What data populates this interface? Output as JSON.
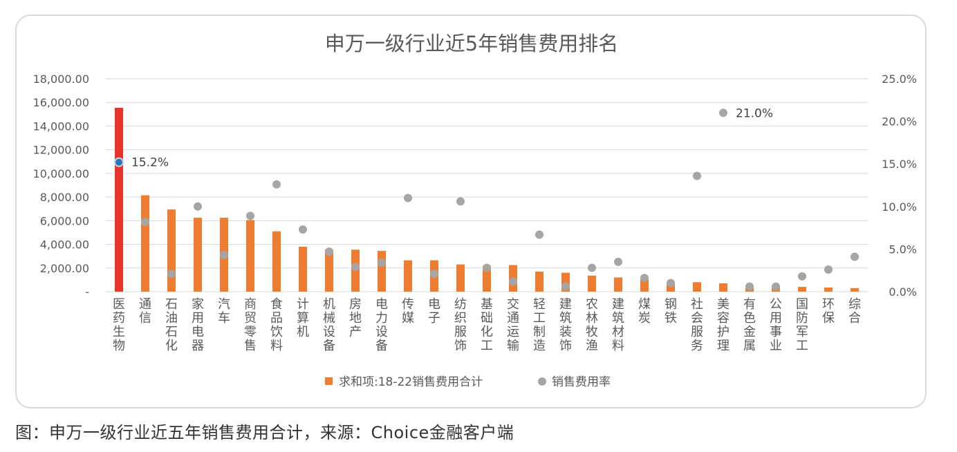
{
  "caption": "图：申万一级行业近五年销售费用合计，来源：Choice金融客户端",
  "colors": {
    "bar": "#ED7D31",
    "bar_highlight": "#E8322A",
    "dot": "#A5A5A5",
    "dot_highlight": "#2E75B6",
    "grid": "#D9D9D9",
    "text": "#595959"
  },
  "chart_data": {
    "type": "bar",
    "title": "申万一级行业近5年销售费用排名",
    "categories": [
      "医药生物",
      "通信",
      "石油石化",
      "家用电器",
      "汽车",
      "商贸零售",
      "食品饮料",
      "计算机",
      "机械设备",
      "房地产",
      "电力设备",
      "传媒",
      "电子",
      "纺织服饰",
      "基础化工",
      "交通运输",
      "轻工制造",
      "建筑装饰",
      "农林牧渔",
      "建筑材料",
      "煤炭",
      "钢铁",
      "社会服务",
      "美容护理",
      "有色金属",
      "公用事业",
      "国防军工",
      "环保",
      "综合"
    ],
    "y_ticks": [
      "-",
      "2,000.00",
      "4,000.00",
      "6,000.00",
      "8,000.00",
      "10,000.00",
      "12,000.00",
      "14,000.00",
      "16,000.00",
      "18,000.00"
    ],
    "y2_ticks": [
      "0.0%",
      "5.0%",
      "10.0%",
      "15.0%",
      "20.0%",
      "25.0%"
    ],
    "ylim": [
      0,
      18000
    ],
    "y2lim": [
      0,
      25
    ],
    "series": [
      {
        "name": "求和项:18-22销售费用合计",
        "type": "bar",
        "values": [
          15550,
          8150,
          6950,
          6250,
          6250,
          6050,
          5100,
          3800,
          3550,
          3550,
          3450,
          2650,
          2650,
          2300,
          2200,
          2250,
          1700,
          1600,
          1350,
          1200,
          1000,
          800,
          800,
          700,
          450,
          500,
          400,
          350,
          300
        ]
      },
      {
        "name": "销售费用率",
        "type": "scatter",
        "axis": "right",
        "values": [
          15.2,
          8.2,
          2.1,
          10.0,
          4.3,
          8.9,
          12.6,
          7.3,
          4.7,
          2.9,
          3.4,
          11.0,
          2.1,
          10.6,
          2.8,
          1.2,
          6.7,
          0.6,
          2.8,
          3.5,
          1.6,
          1.0,
          13.6,
          21.0,
          0.6,
          0.6,
          1.8,
          2.6,
          4.1
        ]
      }
    ],
    "data_labels": [
      {
        "series": 1,
        "index": 0,
        "text": "15.2%"
      },
      {
        "series": 1,
        "index": 23,
        "text": "21.0%"
      }
    ],
    "legend": {
      "position": "bottom"
    },
    "grid": true
  }
}
